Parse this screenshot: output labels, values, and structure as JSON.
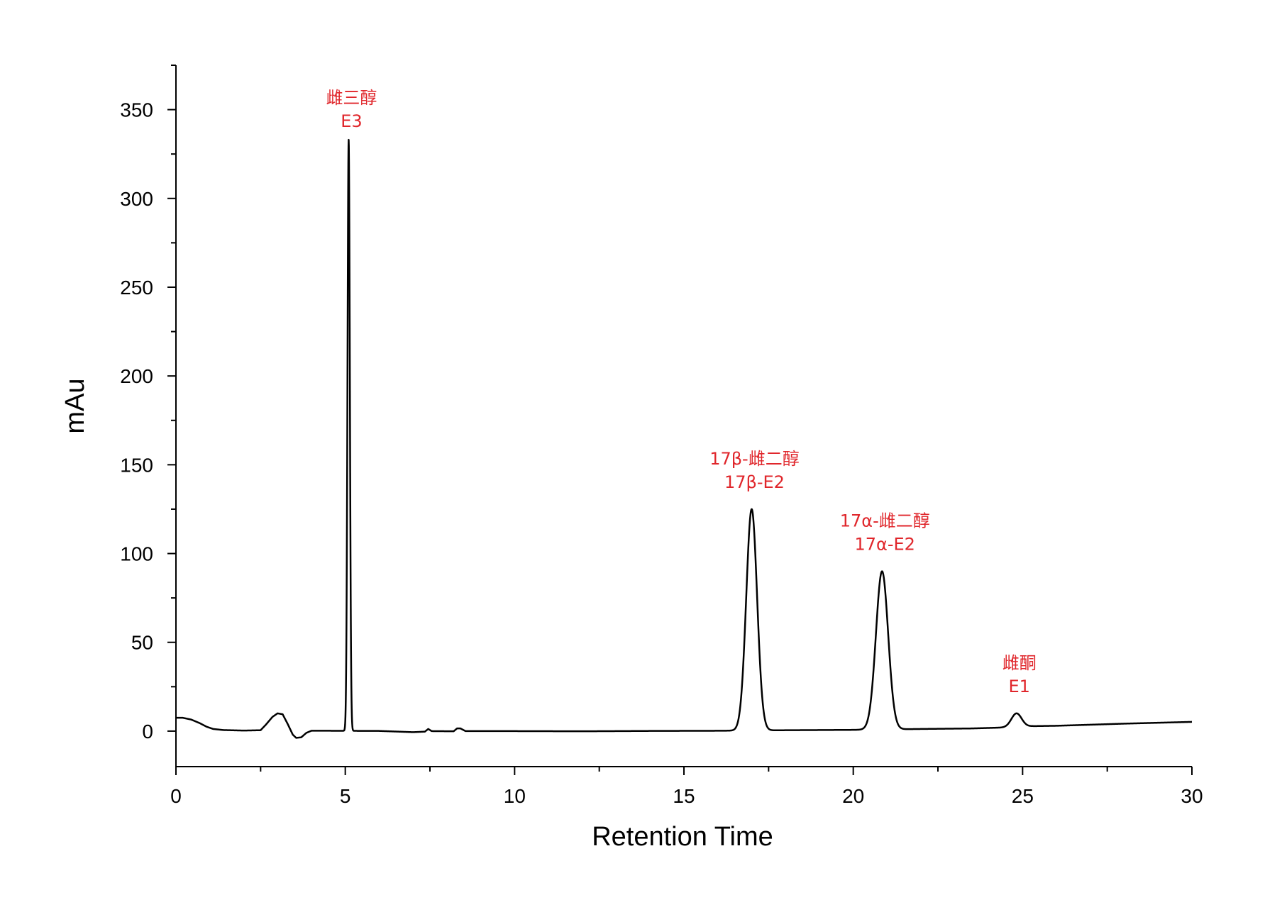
{
  "chart_data": {
    "type": "line",
    "xlabel": "Retention Time",
    "ylabel": "mAu",
    "xlim": [
      0,
      30
    ],
    "ylim": [
      -20,
      375
    ],
    "xticks": [
      0,
      5,
      10,
      15,
      20,
      25,
      30
    ],
    "yticks": [
      0,
      50,
      100,
      150,
      200,
      250,
      300,
      350
    ],
    "grid": false,
    "line_color": "#000000",
    "annotation_color": "#e0262b",
    "baseline": [
      [
        0,
        7.5
      ],
      [
        0.2,
        7.5
      ],
      [
        0.45,
        6.5
      ],
      [
        0.7,
        4.5
      ],
      [
        0.9,
        2.5
      ],
      [
        1.1,
        1.2
      ],
      [
        1.4,
        0.6
      ],
      [
        2.0,
        0.3
      ],
      [
        2.5,
        0.5
      ],
      [
        2.65,
        3.5
      ],
      [
        2.85,
        8.0
      ],
      [
        3.0,
        10.0
      ],
      [
        3.15,
        9.5
      ],
      [
        3.3,
        4.0
      ],
      [
        3.45,
        -2.0
      ],
      [
        3.55,
        -3.8
      ],
      [
        3.7,
        -3.5
      ],
      [
        3.85,
        -1.0
      ],
      [
        4.0,
        0.2
      ],
      [
        4.5,
        0.2
      ],
      [
        6.0,
        0.1
      ],
      [
        7.0,
        -0.6
      ],
      [
        7.35,
        -0.3
      ],
      [
        7.45,
        1.2
      ],
      [
        7.55,
        0.0
      ],
      [
        8.2,
        -0.1
      ],
      [
        8.3,
        1.5
      ],
      [
        8.4,
        1.5
      ],
      [
        8.55,
        0.0
      ],
      [
        10.0,
        0.0
      ],
      [
        12.0,
        -0.1
      ],
      [
        14.0,
        0.1
      ],
      [
        16.0,
        0.2
      ],
      [
        18.0,
        0.5
      ],
      [
        20.0,
        0.7
      ],
      [
        22.0,
        1.2
      ],
      [
        23.5,
        1.5
      ],
      [
        24.4,
        2.0
      ],
      [
        25.3,
        2.8
      ],
      [
        26.0,
        3.0
      ],
      [
        27.0,
        3.6
      ],
      [
        28.0,
        4.2
      ],
      [
        29.0,
        4.7
      ],
      [
        30.0,
        5.2
      ]
    ],
    "peaks": [
      {
        "rt": 5.1,
        "height": 333,
        "label_cn": "雌三醇",
        "label_abbr": "E3"
      },
      {
        "rt": 17.0,
        "height": 125,
        "label_cn": "17β-雌二醇",
        "label_abbr": "17β-E2"
      },
      {
        "rt": 20.85,
        "height": 90,
        "label_cn": "17α-雌二醇",
        "label_abbr": "17α-E2"
      },
      {
        "rt": 24.82,
        "height": 10,
        "label_cn": "雌酮",
        "label_abbr": "E1"
      }
    ]
  }
}
